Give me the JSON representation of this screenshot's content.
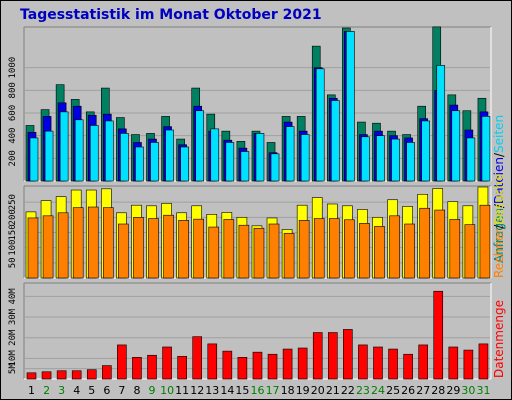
{
  "title": "Tagesstatistik im Monat Oktober 2021",
  "colors": {
    "background": "#c0c0c0",
    "seiten": "#008060",
    "dateien": "#0000e0",
    "anfragen": "#00e0ff",
    "besuche": "#ffff00",
    "rechner": "#ff8000",
    "datenmenge": "#ff0000",
    "weekend_label": "#008000"
  },
  "chart_data": [
    {
      "type": "bar",
      "panel": "top",
      "categories": [
        "1",
        "2",
        "3",
        "4",
        "5",
        "6",
        "7",
        "8",
        "9",
        "10",
        "11",
        "12",
        "13",
        "14",
        "15",
        "16",
        "17",
        "18",
        "19",
        "20",
        "21",
        "22",
        "23",
        "24",
        "25",
        "26",
        "27",
        "28",
        "29",
        "30",
        "31"
      ],
      "side_label_parts": [
        "Anfragen",
        "/",
        "Dateien",
        "/",
        "Seiten"
      ],
      "ytick_labels": [
        "200",
        "400",
        "600",
        "800",
        "1000"
      ],
      "ytick_values": [
        200,
        400,
        600,
        800,
        1000
      ],
      "ylim": [
        0,
        1350
      ],
      "series": [
        {
          "name": "Seiten",
          "values": [
            490,
            630,
            850,
            720,
            610,
            820,
            560,
            410,
            420,
            570,
            370,
            820,
            590,
            440,
            350,
            440,
            340,
            570,
            570,
            1190,
            760,
            1350,
            520,
            510,
            440,
            410,
            660,
            1360,
            760,
            620,
            730
          ]
        },
        {
          "name": "Dateien",
          "values": [
            430,
            570,
            690,
            660,
            580,
            590,
            460,
            340,
            370,
            480,
            320,
            660,
            440,
            360,
            290,
            420,
            250,
            520,
            440,
            1000,
            730,
            1320,
            410,
            440,
            400,
            380,
            550,
            800,
            670,
            450,
            610
          ]
        },
        {
          "name": "Anfragen",
          "values": [
            380,
            440,
            610,
            540,
            490,
            530,
            420,
            300,
            340,
            450,
            300,
            620,
            460,
            340,
            260,
            420,
            240,
            480,
            410,
            990,
            710,
            1320,
            390,
            400,
            370,
            340,
            530,
            1020,
            620,
            380,
            570
          ]
        }
      ]
    },
    {
      "type": "bar",
      "panel": "middle",
      "categories": [
        "1",
        "2",
        "3",
        "4",
        "5",
        "6",
        "7",
        "8",
        "9",
        "10",
        "11",
        "12",
        "13",
        "14",
        "15",
        "16",
        "17",
        "18",
        "19",
        "20",
        "21",
        "22",
        "23",
        "24",
        "25",
        "26",
        "27",
        "28",
        "29",
        "30",
        "31"
      ],
      "side_label_parts": [
        "Rechner",
        "/",
        "Besuche"
      ],
      "ytick_labels": [
        "50",
        "100",
        "150",
        "200",
        "250"
      ],
      "ytick_values": [
        50,
        100,
        150,
        200,
        250
      ],
      "ylim": [
        0,
        300
      ],
      "series": [
        {
          "name": "Besuche",
          "values": [
            218,
            255,
            268,
            290,
            290,
            294,
            215,
            240,
            238,
            246,
            215,
            238,
            210,
            216,
            200,
            172,
            198,
            160,
            240,
            265,
            244,
            238,
            226,
            200,
            258,
            236,
            276,
            295,
            252,
            238,
            300
          ]
        },
        {
          "name": "Rechner",
          "values": [
            198,
            205,
            215,
            232,
            234,
            232,
            178,
            200,
            196,
            207,
            190,
            194,
            168,
            193,
            174,
            164,
            178,
            147,
            190,
            196,
            196,
            192,
            180,
            170,
            205,
            178,
            230,
            224,
            193,
            176,
            240
          ]
        }
      ]
    },
    {
      "type": "bar",
      "panel": "bottom",
      "categories": [
        "1",
        "2",
        "3",
        "4",
        "5",
        "6",
        "7",
        "8",
        "9",
        "10",
        "11",
        "12",
        "13",
        "14",
        "15",
        "16",
        "17",
        "18",
        "19",
        "20",
        "21",
        "22",
        "23",
        "24",
        "25",
        "26",
        "27",
        "28",
        "29",
        "30",
        "31"
      ],
      "side_label_parts": [
        "Datenmenge"
      ],
      "ytick_labels": [
        "5M",
        "10M",
        "20M",
        "30M",
        "40M"
      ],
      "ytick_values": [
        5,
        10,
        20,
        30,
        40
      ],
      "ylim": [
        0,
        46
      ],
      "series": [
        {
          "name": "Datenmenge",
          "values": [
            3,
            3.5,
            4,
            4,
            4.5,
            6.5,
            16.5,
            10.5,
            11.5,
            15.5,
            11,
            20.5,
            17,
            13.5,
            10.5,
            13,
            12,
            14.5,
            15,
            22.5,
            22.5,
            24,
            16.5,
            15.5,
            14.5,
            12,
            16.5,
            42.5,
            15.5,
            14,
            17
          ]
        }
      ]
    }
  ],
  "weekend_days": [
    2,
    3,
    9,
    10,
    16,
    17,
    23,
    24,
    30,
    31
  ]
}
